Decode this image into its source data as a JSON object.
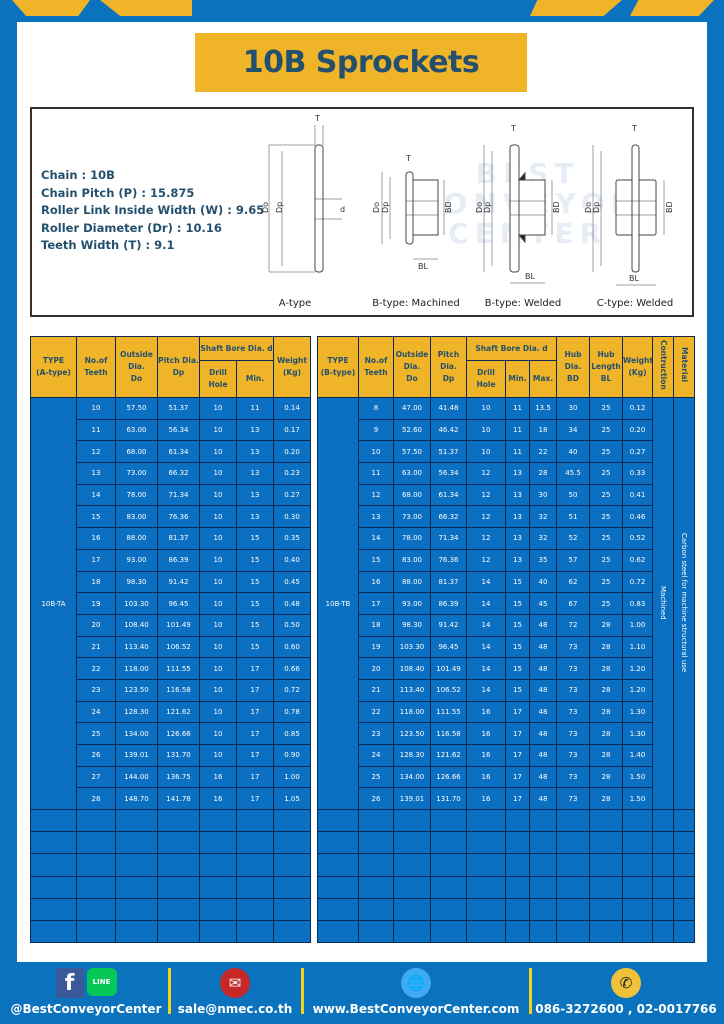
{
  "title": "10B Sprockets",
  "colors": {
    "brand_blue": "#0b72bd",
    "accent_yellow": "#f0b429",
    "title_text": "#24506e"
  },
  "specs": [
    "Chain  :  10B",
    "Chain Pitch (P)  :  15.875",
    "Roller Link Inside Width (W) : 9.65",
    "Roller Diameter (Dr)  : 10.16",
    "Teeth Width (T)  :  9.1"
  ],
  "watermark": [
    "BEST",
    "CONVEYOR",
    "CENTER"
  ],
  "diagram": {
    "labels": {
      "T": "T",
      "Do": "Do",
      "Dp": "Dp",
      "d": "d",
      "BD": "BD",
      "BL": "BL"
    },
    "captions": [
      "A-type",
      "B-type: Machined",
      "B-type: Welded",
      "C-type: Welded"
    ]
  },
  "tableA": {
    "headers": {
      "type": "TYPE",
      "type_sub": "(A-type)",
      "teeth": "No.of",
      "teeth_sub": "Teeth",
      "do": "Outside",
      "do_sub": "Dia.",
      "do_sub2": "Do",
      "dp": "Pitch Dia.",
      "dp_sub": "Dp",
      "bore": "Shaft Bore Dia. d",
      "drill": "Drill Hole",
      "min": "Min.",
      "weight": "Weight",
      "weight_sub": "(Kg)"
    },
    "type": "10B-TA",
    "rows": [
      [
        "10",
        "57.50",
        "51.37",
        "10",
        "11",
        "0.14"
      ],
      [
        "11",
        "63.00",
        "56.34",
        "10",
        "13",
        "0.17"
      ],
      [
        "12",
        "68.00",
        "61.34",
        "10",
        "13",
        "0.20"
      ],
      [
        "13",
        "73.00",
        "66.32",
        "10",
        "13",
        "0.23"
      ],
      [
        "14",
        "78.00",
        "71.34",
        "10",
        "13",
        "0.27"
      ],
      [
        "15",
        "83.00",
        "76.36",
        "10",
        "13",
        "0.30"
      ],
      [
        "16",
        "88.00",
        "81.37",
        "10",
        "15",
        "0.35"
      ],
      [
        "17",
        "93.00",
        "86.39",
        "10",
        "15",
        "0.40"
      ],
      [
        "18",
        "98.30",
        "91.42",
        "10",
        "15",
        "0.45"
      ],
      [
        "19",
        "103.30",
        "96.45",
        "10",
        "15",
        "0.48"
      ],
      [
        "20",
        "108.40",
        "101.49",
        "10",
        "15",
        "0.50"
      ],
      [
        "21",
        "113.40",
        "106.52",
        "10",
        "15",
        "0.60"
      ],
      [
        "22",
        "118.00",
        "111.55",
        "10",
        "17",
        "0.66"
      ],
      [
        "23",
        "123.50",
        "116.58",
        "10",
        "17",
        "0.72"
      ],
      [
        "24",
        "128.30",
        "121.62",
        "10",
        "17",
        "0.78"
      ],
      [
        "25",
        "134.00",
        "126.66",
        "10",
        "17",
        "0.85"
      ],
      [
        "26",
        "139.01",
        "131.70",
        "10",
        "17",
        "0.90"
      ],
      [
        "27",
        "144.00",
        "136.75",
        "16",
        "17",
        "1.00"
      ],
      [
        "28",
        "148.70",
        "141.78",
        "16",
        "17",
        "1.05"
      ]
    ]
  },
  "tableB": {
    "headers": {
      "type": "TYPE",
      "type_sub": "(B-type)",
      "teeth": "No.of",
      "teeth_sub": "Teeth",
      "do": "Outside",
      "do_sub": "Dia.",
      "do_sub2": "Do",
      "dp": "Pitch Dia.",
      "dp_sub": "Dp",
      "bore": "Shaft Bore Dia. d",
      "drill": "Drill Hole",
      "min": "Min.",
      "max": "Max.",
      "bd": "Hub Dia.",
      "bd_sub": "BD",
      "bl": "Hub",
      "bl_sub": "Length",
      "bl_sub2": "BL",
      "weight": "Weight",
      "weight_sub": "(Kg)",
      "construction": "Contruction",
      "material": "Material"
    },
    "type": "10B-TB",
    "construction": "Machined",
    "material": "Carbon steel  for machine structural use",
    "rows": [
      [
        "8",
        "47.00",
        "41.48",
        "10",
        "11",
        "13.5",
        "30",
        "25",
        "0.12"
      ],
      [
        "9",
        "52.60",
        "46.42",
        "10",
        "11",
        "18",
        "34",
        "25",
        "0.20"
      ],
      [
        "10",
        "57.50",
        "51.37",
        "10",
        "11",
        "22",
        "40",
        "25",
        "0.27"
      ],
      [
        "11",
        "63.00",
        "56.34",
        "12",
        "13",
        "28",
        "45.5",
        "25",
        "0.33"
      ],
      [
        "12",
        "68.00",
        "61.34",
        "12",
        "13",
        "30",
        "50",
        "25",
        "0.41"
      ],
      [
        "13",
        "73.00",
        "66.32",
        "12",
        "13",
        "32",
        "51",
        "25",
        "0.46"
      ],
      [
        "14",
        "78.00",
        "71.34",
        "12",
        "13",
        "32",
        "52",
        "25",
        "0.52"
      ],
      [
        "15",
        "83.00",
        "76.36",
        "12",
        "13",
        "35",
        "57",
        "25",
        "0.62"
      ],
      [
        "16",
        "88.00",
        "81.37",
        "14",
        "15",
        "40",
        "62",
        "25",
        "0.72"
      ],
      [
        "17",
        "93.00",
        "86.39",
        "14",
        "15",
        "45",
        "67",
        "25",
        "0.83"
      ],
      [
        "18",
        "98.30",
        "91.42",
        "14",
        "15",
        "48",
        "72",
        "28",
        "1.00"
      ],
      [
        "19",
        "103.30",
        "96.45",
        "14",
        "15",
        "48",
        "73",
        "28",
        "1.10"
      ],
      [
        "20",
        "108.40",
        "101.49",
        "14",
        "15",
        "48",
        "73",
        "28",
        "1.20"
      ],
      [
        "21",
        "113.40",
        "106.52",
        "14",
        "15",
        "48",
        "73",
        "28",
        "1.20"
      ],
      [
        "22",
        "118.00",
        "111.55",
        "16",
        "17",
        "48",
        "73",
        "28",
        "1.30"
      ],
      [
        "23",
        "123.50",
        "116.58",
        "16",
        "17",
        "48",
        "73",
        "28",
        "1.30"
      ],
      [
        "24",
        "128.30",
        "121.62",
        "16",
        "17",
        "48",
        "73",
        "28",
        "1.40"
      ],
      [
        "25",
        "134.00",
        "126.66",
        "16",
        "17",
        "48",
        "73",
        "28",
        "1.50"
      ],
      [
        "26",
        "139.01",
        "131.70",
        "16",
        "17",
        "48",
        "73",
        "28",
        "1.50"
      ]
    ]
  },
  "footer": {
    "social": "@BestConveyorCenter",
    "line_label": "LINE",
    "facebook_label": "f",
    "email": "sale@nmec.co.th",
    "website": "www.BestConveyorCenter.com",
    "phone": "086-3272600 , 02-0017766"
  }
}
